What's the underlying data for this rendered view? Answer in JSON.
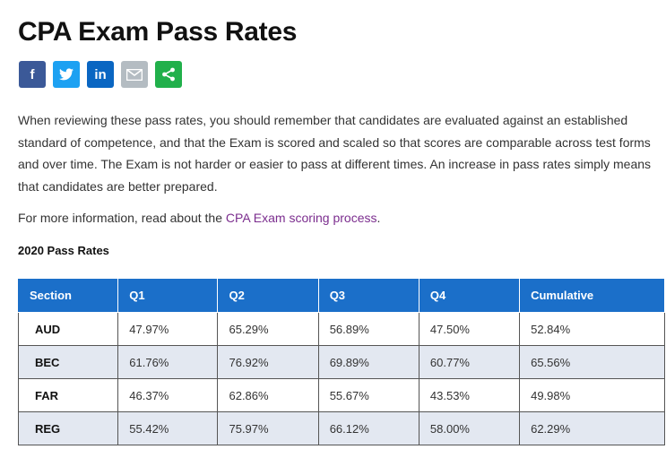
{
  "page": {
    "title": "CPA Exam Pass Rates",
    "share": [
      {
        "name": "facebook",
        "glyph": "f",
        "color": "#3b5998"
      },
      {
        "name": "twitter",
        "glyph": "",
        "color": "#1da1f2"
      },
      {
        "name": "linkedin",
        "glyph": "in",
        "color": "#0a66c2"
      },
      {
        "name": "email",
        "glyph": "",
        "color": "#b4bcc2"
      },
      {
        "name": "share",
        "glyph": "",
        "color": "#21b04b"
      }
    ],
    "intro": "When reviewing these pass rates, you should remember that candidates are evaluated against an established standard of competence, and that the Exam is scored and scaled so that scores are comparable across test forms and over time. The Exam is not harder or easier to pass at different times. An increase in pass rates simply means that candidates are better prepared.",
    "more_prefix": "For more information, read about the ",
    "more_link": "CPA Exam scoring process",
    "more_suffix": ".",
    "subhead": "2020 Pass Rates"
  },
  "table": {
    "headers": [
      "Section",
      "Q1",
      "Q2",
      "Q3",
      "Q4",
      "Cumulative"
    ],
    "rows": [
      [
        "AUD",
        "47.97%",
        "65.29%",
        "56.89%",
        "47.50%",
        "52.84%"
      ],
      [
        "BEC",
        "61.76%",
        "76.92%",
        "69.89%",
        "60.77%",
        "65.56%"
      ],
      [
        "FAR",
        "46.37%",
        "62.86%",
        "55.67%",
        "43.53%",
        "49.98%"
      ],
      [
        "REG",
        "55.42%",
        "75.97%",
        "66.12%",
        "58.00%",
        "62.29%"
      ]
    ]
  }
}
